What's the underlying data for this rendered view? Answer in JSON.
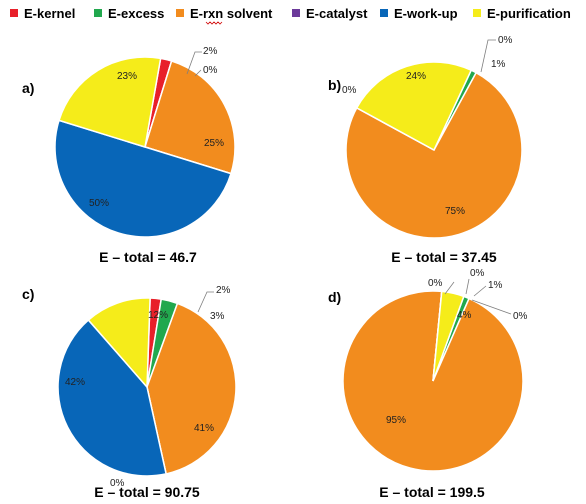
{
  "colors": {
    "E-kernel": "#e8202a",
    "E-excess": "#21a84e",
    "E-rxn solvent": "#f28c1e",
    "E-catalyst": "#6c3a9a",
    "E-work-up": "#0866b8",
    "E-purification": "#f5ec1a"
  },
  "legend": [
    "E-kernel",
    "E-excess",
    "E-rxn solvent",
    "E-catalyst",
    "E-work-up",
    "E-purification"
  ],
  "chart_data": [
    {
      "type": "pie",
      "panel": "a)",
      "total_label": "E – total = 46.7",
      "slices": [
        {
          "category": "E-kernel",
          "value": 2,
          "label": "2%"
        },
        {
          "category": "E-excess",
          "value": 0,
          "label": "0%"
        },
        {
          "category": "E-rxn solvent",
          "value": 25,
          "label": "25%"
        },
        {
          "category": "E-catalyst",
          "value": 0,
          "label": ""
        },
        {
          "category": "E-work-up",
          "value": 50,
          "label": "50%"
        },
        {
          "category": "E-purification",
          "value": 23,
          "label": "23%"
        }
      ]
    },
    {
      "type": "pie",
      "panel": "b)",
      "total_label": "E – total = 37.45",
      "slices": [
        {
          "category": "E-kernel",
          "value": 0,
          "label": "0%"
        },
        {
          "category": "E-excess",
          "value": 1,
          "label": "1%"
        },
        {
          "category": "E-rxn solvent",
          "value": 75,
          "label": "75%"
        },
        {
          "category": "E-catalyst",
          "value": 0,
          "label": ""
        },
        {
          "category": "E-work-up",
          "value": 0,
          "label": "0%"
        },
        {
          "category": "E-purification",
          "value": 24,
          "label": "24%"
        }
      ]
    },
    {
      "type": "pie",
      "panel": "c)",
      "total_label": "E – total = 90.75",
      "slices": [
        {
          "category": "E-kernel",
          "value": 2,
          "label": "2%"
        },
        {
          "category": "E-excess",
          "value": 3,
          "label": "3%"
        },
        {
          "category": "E-rxn solvent",
          "value": 41,
          "label": "41%"
        },
        {
          "category": "E-catalyst",
          "value": 0,
          "label": "0%"
        },
        {
          "category": "E-work-up",
          "value": 42,
          "label": "42%"
        },
        {
          "category": "E-purification",
          "value": 12,
          "label": "12%"
        }
      ]
    },
    {
      "type": "pie",
      "panel": "d)",
      "total_label": "E – total = 199.5",
      "slices": [
        {
          "category": "E-kernel",
          "value": 0,
          "label": "0%"
        },
        {
          "category": "E-excess",
          "value": 1,
          "label": "1%"
        },
        {
          "category": "E-rxn solvent",
          "value": 95,
          "label": "95%"
        },
        {
          "category": "E-catalyst",
          "value": 0,
          "label": "0%"
        },
        {
          "category": "E-work-up",
          "value": 0,
          "label": "0%"
        },
        {
          "category": "E-purification",
          "value": 4,
          "label": "4%"
        }
      ]
    }
  ]
}
